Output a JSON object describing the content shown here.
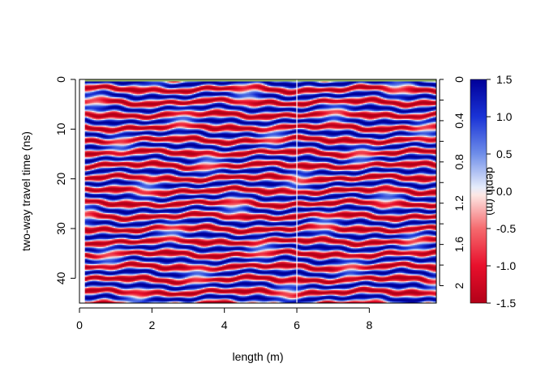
{
  "chart_data": {
    "type": "heatmap",
    "title": "",
    "xlabel": "length (m)",
    "ylabel": "two-way travel time (ns)",
    "right_axis_label": "depth (m)",
    "xlim": [
      0,
      9.85
    ],
    "ylim": [
      45,
      0
    ],
    "x_ticks": [
      0,
      2,
      4,
      6,
      8
    ],
    "y_ticks": [
      0,
      10,
      20,
      30,
      40
    ],
    "depth_ticks": [
      "0",
      "0.4",
      "0.8",
      "1.2",
      "1.6",
      "2"
    ],
    "depth_tick_times_ns": [
      0,
      8.3,
      16.6,
      24.9,
      33.2,
      41.5
    ],
    "minor_depth_ticks_ns": [
      4.15,
      12.45,
      20.75,
      29.05,
      37.35
    ],
    "data_x_range": [
      0.15,
      9.85
    ],
    "vertical_marker_x": 6.0,
    "wavelet_period_ns": 2.55,
    "colorbar": {
      "range": [
        -1.5,
        1.5
      ],
      "ticks": [
        "1.5",
        "1.0",
        "0.5",
        "0.0",
        "-0.5",
        "-1.0",
        "-1.5"
      ],
      "tick_values": [
        1.5,
        1.0,
        0.5,
        0.0,
        -0.5,
        -1.0,
        -1.5
      ],
      "palette": [
        {
          "value": -1.5,
          "color": "#b30018"
        },
        {
          "value": -1.0,
          "color": "#e8102c"
        },
        {
          "value": -0.5,
          "color": "#f56a6e"
        },
        {
          "value": -0.05,
          "color": "#fde7e4"
        },
        {
          "value": 0.05,
          "color": "#e6ecfb"
        },
        {
          "value": 0.5,
          "color": "#6f8ee9"
        },
        {
          "value": 1.0,
          "color": "#1a33d6"
        },
        {
          "value": 1.5,
          "color": "#000099"
        }
      ]
    }
  }
}
